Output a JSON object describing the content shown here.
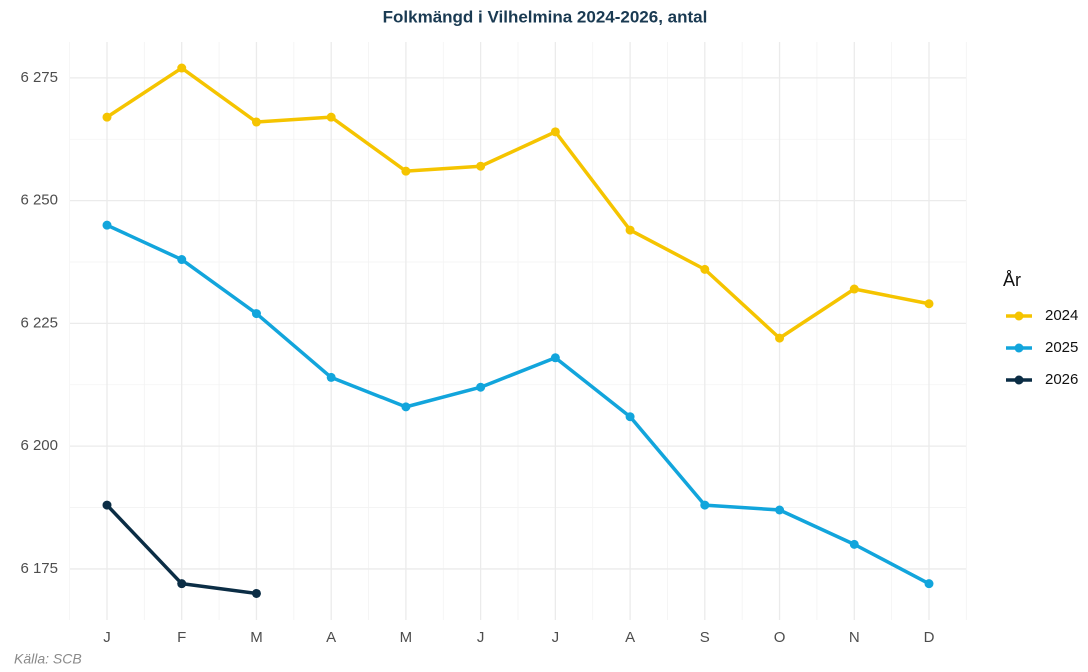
{
  "chart_data": {
    "type": "line",
    "title": "Folkmängd i Vilhelmina 2024-2026, antal",
    "caption": "Källa: SCB",
    "legend_title": "År",
    "categories": [
      "J",
      "F",
      "M",
      "A",
      "M",
      "J",
      "J",
      "A",
      "S",
      "O",
      "N",
      "D"
    ],
    "series": [
      {
        "name": "2024",
        "color": "#f5c400",
        "values": [
          6267,
          6277,
          6266,
          6267,
          6256,
          6257,
          6264,
          6244,
          6236,
          6222,
          6232,
          6229
        ]
      },
      {
        "name": "2025",
        "color": "#12a5dc",
        "values": [
          6245,
          6238,
          6227,
          6214,
          6208,
          6212,
          6218,
          6206,
          6188,
          6187,
          6180,
          6172
        ]
      },
      {
        "name": "2026",
        "color": "#0b2d45",
        "values": [
          6188,
          6172,
          6170,
          null,
          null,
          null,
          null,
          null,
          null,
          null,
          null,
          null
        ]
      }
    ],
    "ylim": [
      6164.6,
      6282.3
    ],
    "yticks": [
      {
        "value": 6175,
        "label": "6 175"
      },
      {
        "value": 6200,
        "label": "6 200"
      },
      {
        "value": 6225,
        "label": "6 225"
      },
      {
        "value": 6250,
        "label": "6 250"
      },
      {
        "value": 6275,
        "label": "6 275"
      }
    ],
    "grid": true,
    "legend": "right"
  }
}
